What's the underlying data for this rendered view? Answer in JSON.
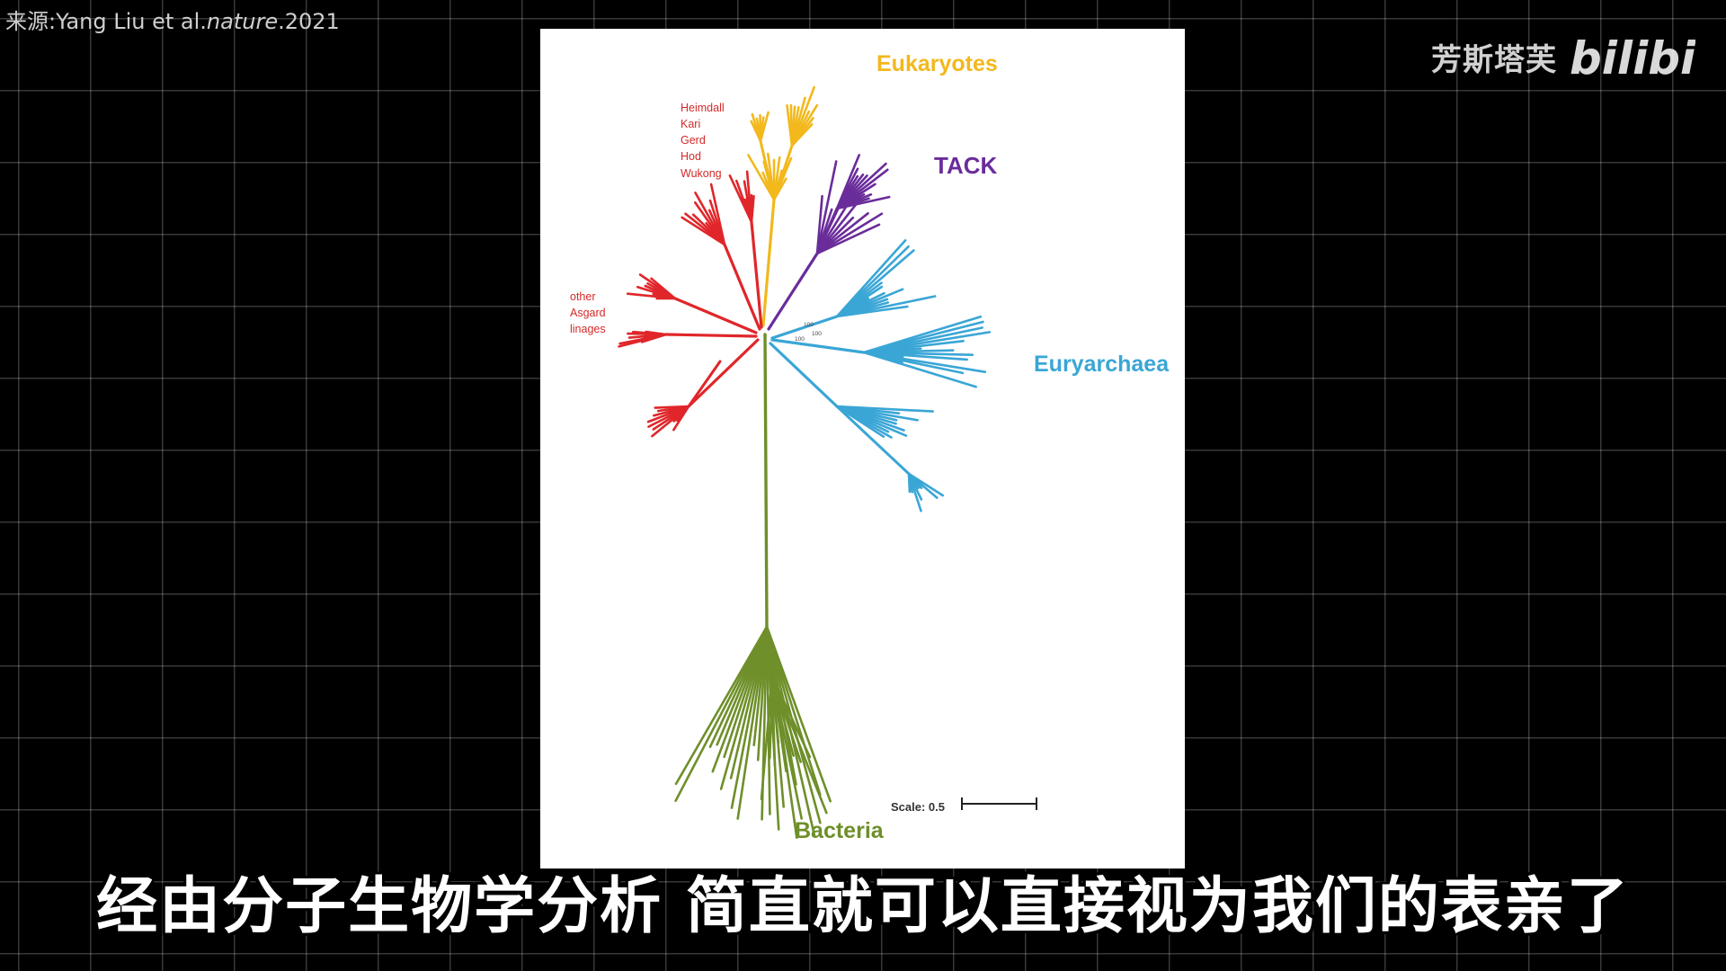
{
  "source_credit": {
    "prefix": "来源:Yang Liu et al.",
    "journal": "nature",
    "year": ".2021"
  },
  "watermark": {
    "text": "芳斯塔芙",
    "logo_text": "bilibili"
  },
  "tree": {
    "groups": [
      {
        "id": "eukaryotes",
        "label": "Eukaryotes",
        "color": "#f2b81c"
      },
      {
        "id": "tack",
        "label": "TACK",
        "color": "#6a2c9a"
      },
      {
        "id": "euryarchaea",
        "label": "Euryarchaea",
        "color": "#3aa6d6"
      },
      {
        "id": "bacteria",
        "label": "Bacteria",
        "color": "#6e8f2a"
      },
      {
        "id": "asgard",
        "label": "",
        "color": "#e0262a"
      }
    ],
    "asgard_lineages": [
      "Heimdall",
      "Kari",
      "Gerd",
      "Hod",
      "Wukong"
    ],
    "other_asgard_label": [
      "other",
      "Asgard",
      "linages"
    ],
    "node_support": [
      "100",
      "100",
      "100"
    ],
    "scale_label": "Scale: 0.5"
  },
  "subtitle": "经由分子生物学分析 简直就可以直接视为我们的表亲了"
}
